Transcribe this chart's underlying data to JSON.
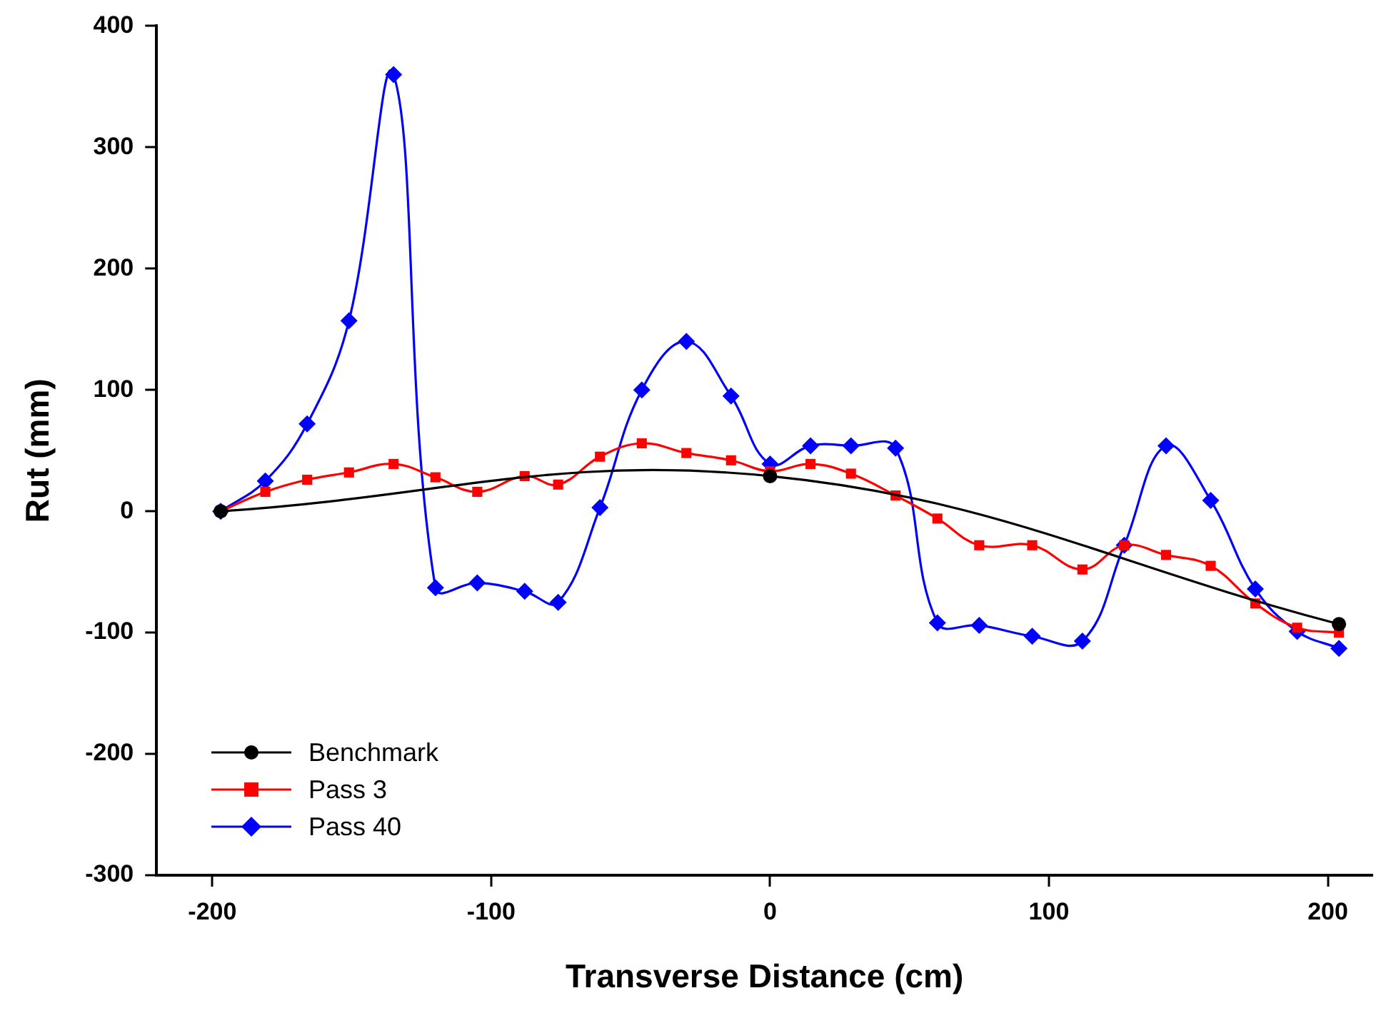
{
  "chart_data": {
    "type": "line",
    "xlabel": "Transverse Distance (cm)",
    "ylabel": "Rut (mm)",
    "xlim": [
      -220,
      216
    ],
    "xticks": [
      -200,
      -100,
      0,
      100,
      200
    ],
    "ylim": [
      -300,
      400
    ],
    "yticks": [
      -300,
      -200,
      -100,
      0,
      100,
      200,
      300,
      400
    ],
    "grid": false,
    "legend": "bottom left",
    "line_style": "solid",
    "series": [
      {
        "name": "Benchmark",
        "color": "#000000",
        "marker": "circle",
        "x": [
          -197,
          0,
          204
        ],
        "values": [
          0,
          29,
          -93
        ]
      },
      {
        "name": "Pass 3",
        "color": "#ff0000",
        "marker": "square",
        "x": [
          -197,
          -181,
          -166,
          -151,
          -135,
          -120,
          -105,
          -88,
          -76,
          -61,
          -46,
          -30,
          -14,
          0,
          14.5,
          29,
          45,
          60,
          75,
          94,
          112,
          127,
          142,
          158,
          174,
          189,
          204
        ],
        "values": [
          0,
          16,
          26,
          32,
          39,
          28,
          16,
          29,
          22,
          45,
          56,
          48,
          42,
          33,
          39,
          31,
          13,
          -6,
          -28,
          -28,
          -48,
          -28,
          -36,
          -45,
          -76,
          -96,
          -100
        ]
      },
      {
        "name": "Pass 40",
        "color": "#0000ff",
        "marker": "diamond",
        "x": [
          -197,
          -181,
          -166,
          -151,
          -135,
          -120,
          -105,
          -88,
          -76,
          -61,
          -46,
          -30,
          -14,
          0,
          14.5,
          29,
          45,
          60,
          75,
          94,
          112,
          127,
          142,
          158,
          174,
          189,
          204
        ],
        "values": [
          0,
          25,
          72,
          157,
          360,
          -63,
          -59,
          -66,
          -75,
          3,
          100,
          140,
          95,
          39,
          54,
          54,
          52,
          -92,
          -94,
          -103,
          -107,
          -28,
          54,
          9,
          -64,
          -99,
          -113
        ]
      }
    ]
  }
}
